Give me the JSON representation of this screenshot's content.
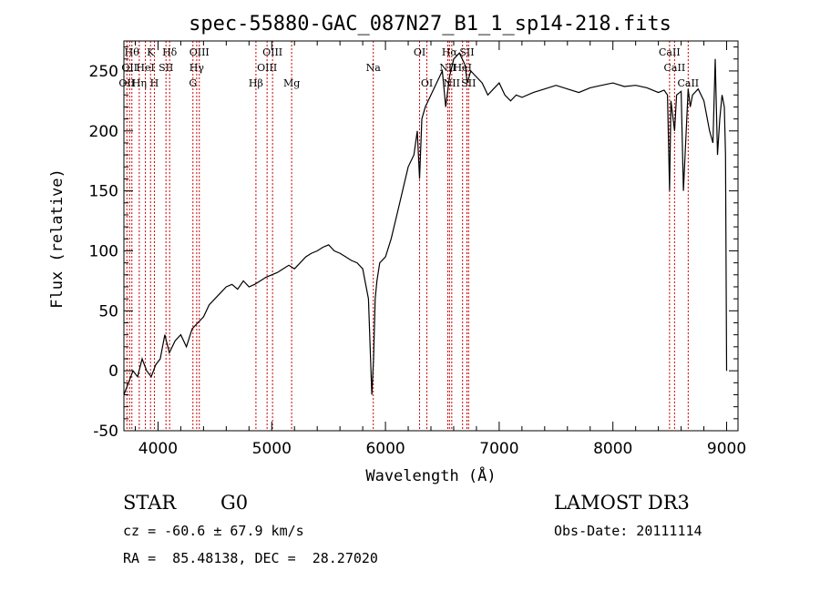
{
  "chart_data": {
    "type": "line",
    "title": "spec-55880-GAC_087N27_B1_1_sp14-218.fits",
    "xlabel": "Wavelength (Å)",
    "ylabel": "Flux (relative)",
    "xlim": [
      3700,
      9100
    ],
    "ylim": [
      -50,
      275
    ],
    "xticks": [
      4000,
      5000,
      6000,
      7000,
      8000,
      9000
    ],
    "yticks": [
      -50,
      0,
      50,
      100,
      150,
      200,
      250
    ],
    "series": [
      {
        "name": "spectrum",
        "x": [
          3700,
          3740,
          3780,
          3820,
          3860,
          3900,
          3940,
          3980,
          4020,
          4060,
          4100,
          4150,
          4200,
          4250,
          4300,
          4350,
          4400,
          4450,
          4500,
          4550,
          4600,
          4650,
          4700,
          4750,
          4800,
          4850,
          4900,
          4950,
          5000,
          5050,
          5100,
          5150,
          5200,
          5250,
          5300,
          5350,
          5400,
          5450,
          5500,
          5550,
          5600,
          5650,
          5700,
          5750,
          5800,
          5850,
          5880,
          5895,
          5910,
          5925,
          5950,
          6000,
          6050,
          6100,
          6150,
          6200,
          6250,
          6280,
          6300,
          6320,
          6350,
          6400,
          6450,
          6500,
          6530,
          6563,
          6600,
          6650,
          6700,
          6720,
          6750,
          6800,
          6850,
          6900,
          6950,
          7000,
          7050,
          7100,
          7150,
          7200,
          7300,
          7400,
          7500,
          7600,
          7700,
          7800,
          7900,
          8000,
          8100,
          8200,
          8300,
          8400,
          8450,
          8480,
          8498,
          8510,
          8542,
          8560,
          8600,
          8620,
          8662,
          8680,
          8700,
          8750,
          8800,
          8850,
          8880,
          8900,
          8920,
          8940,
          8960,
          8980,
          8990,
          9000
        ],
        "y": [
          -20,
          -10,
          0,
          -5,
          10,
          0,
          -5,
          5,
          10,
          30,
          15,
          25,
          30,
          20,
          35,
          40,
          45,
          55,
          60,
          65,
          70,
          72,
          68,
          75,
          70,
          72,
          75,
          78,
          80,
          82,
          85,
          88,
          85,
          90,
          95,
          98,
          100,
          103,
          105,
          100,
          98,
          95,
          92,
          90,
          85,
          60,
          -20,
          10,
          60,
          75,
          90,
          95,
          110,
          130,
          150,
          170,
          180,
          200,
          160,
          210,
          220,
          230,
          240,
          250,
          220,
          245,
          260,
          265,
          255,
          240,
          250,
          245,
          240,
          230,
          235,
          240,
          230,
          225,
          230,
          228,
          232,
          235,
          238,
          235,
          232,
          236,
          238,
          240,
          237,
          238,
          236,
          232,
          234,
          230,
          150,
          225,
          200,
          230,
          233,
          150,
          235,
          220,
          230,
          235,
          225,
          200,
          190,
          260,
          180,
          210,
          230,
          220,
          180,
          0
        ]
      }
    ],
    "emission_lines": [
      {
        "wl": 3726,
        "label": "OII",
        "row": 2
      },
      {
        "wl": 3750,
        "label": "OII",
        "row": 1
      },
      {
        "wl": 3770,
        "label": "Hθ",
        "row": 0
      },
      {
        "wl": 3835,
        "label": "Hη",
        "row": 2
      },
      {
        "wl": 3889,
        "label": "HeI",
        "row": 1
      },
      {
        "wl": 3934,
        "label": "K",
        "row": 0
      },
      {
        "wl": 3968,
        "label": "H",
        "row": 2
      },
      {
        "wl": 4070,
        "label": "SII",
        "row": 1
      },
      {
        "wl": 4102,
        "label": "Hδ",
        "row": 0
      },
      {
        "wl": 4307,
        "label": "G",
        "row": 2
      },
      {
        "wl": 4340,
        "label": "Hγ",
        "row": 1
      },
      {
        "wl": 4363,
        "label": "OIII",
        "row": 0
      },
      {
        "wl": 4861,
        "label": "Hβ",
        "row": 2
      },
      {
        "wl": 4959,
        "label": "OIII",
        "row": 1
      },
      {
        "wl": 5007,
        "label": "OIII",
        "row": 0
      },
      {
        "wl": 5175,
        "label": "Mg",
        "row": 2
      },
      {
        "wl": 5893,
        "label": "Na",
        "row": 1
      },
      {
        "wl": 6300,
        "label": "OI",
        "row": 0
      },
      {
        "wl": 6364,
        "label": "OI",
        "row": 2
      },
      {
        "wl": 6548,
        "label": "NII",
        "row": 1
      },
      {
        "wl": 6563,
        "label": "Hα",
        "row": 0
      },
      {
        "wl": 6583,
        "label": "NII",
        "row": 2
      },
      {
        "wl": 6678,
        "label": "HeI",
        "row": 1
      },
      {
        "wl": 6716,
        "label": "SII",
        "row": 0
      },
      {
        "wl": 6731,
        "label": "SII",
        "row": 2
      },
      {
        "wl": 8498,
        "label": "CaII",
        "row": 0
      },
      {
        "wl": 8542,
        "label": "CaII",
        "row": 1
      },
      {
        "wl": 8662,
        "label": "CaII",
        "row": 2
      }
    ]
  },
  "info": {
    "object_class": "STAR",
    "subclass": "G0",
    "survey": "LAMOST DR3",
    "redshift": "cz = -60.6 ± 67.9 km/s",
    "obs_date": "Obs-Date: 20111114",
    "coords": "RA =  85.48138, DEC =  28.27020"
  },
  "colors": {
    "line_marker": "#cc0000",
    "spectrum": "#000000"
  }
}
